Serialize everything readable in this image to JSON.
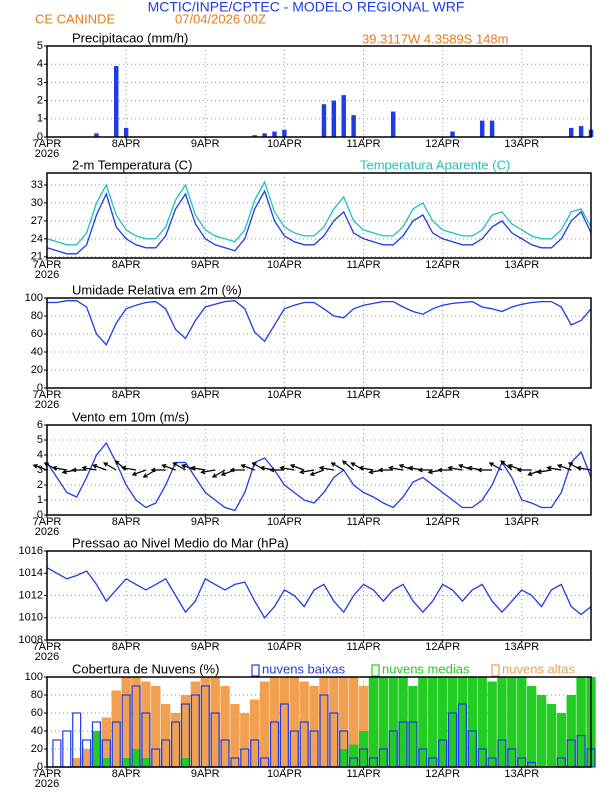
{
  "header": {
    "title": "MCTIC/INPE/CPTEC - MODELO REGIONAL WRF",
    "station": "CE CANINDE",
    "run": "07/04/2026 00Z",
    "location": "39.3117W 4.3589S 148m"
  },
  "chart_data": [
    {
      "type": "bar",
      "title": "Precipitacao (mm/h)",
      "color": "#1e3ce6",
      "grid": true,
      "x_year": "2026",
      "xlim": [
        0,
        165
      ],
      "xticks": [
        {
          "value": 0,
          "label": "7APR"
        },
        {
          "value": 24,
          "label": "8APR"
        },
        {
          "value": 48,
          "label": "9APR"
        },
        {
          "value": 72,
          "label": "10APR"
        },
        {
          "value": 96,
          "label": "11APR"
        },
        {
          "value": 120,
          "label": "12APR"
        },
        {
          "value": 144,
          "label": "13APR"
        }
      ],
      "ylim": [
        0,
        5
      ],
      "yticks": [
        0,
        1,
        2,
        3,
        4,
        5
      ],
      "series": [
        {
          "name": null,
          "color": "#1e3ce6",
          "style": "fill",
          "values": [
            0,
            0,
            0,
            0,
            0,
            0.2,
            0,
            3.9,
            0.5,
            0,
            0,
            0,
            0,
            0,
            0,
            0,
            0,
            0,
            0,
            0,
            0,
            0.1,
            0.2,
            0.3,
            0.4,
            0,
            0,
            0,
            1.8,
            2.0,
            2.3,
            1.2,
            0,
            0,
            0,
            1.4,
            0,
            0,
            0,
            0,
            0,
            0.3,
            0,
            0,
            0.9,
            0.9,
            0,
            0,
            0,
            0,
            0,
            0,
            0,
            0.5,
            0.6,
            0.4
          ]
        }
      ]
    },
    {
      "type": "line",
      "title": "2-m Temperatura (C)",
      "grid": true,
      "x_year": "2026",
      "xlim": [
        0,
        165
      ],
      "xticks": [
        {
          "value": 0,
          "label": "7APR"
        },
        {
          "value": 24,
          "label": "8APR"
        },
        {
          "value": 48,
          "label": "9APR"
        },
        {
          "value": 72,
          "label": "10APR"
        },
        {
          "value": 96,
          "label": "11APR"
        },
        {
          "value": 120,
          "label": "12APR"
        },
        {
          "value": 144,
          "label": "13APR"
        }
      ],
      "ylim": [
        20.8,
        35
      ],
      "yticks": [
        21,
        24,
        27,
        30,
        33
      ],
      "series": [
        {
          "name": null,
          "color": "#1e3ce6",
          "values": [
            22.5,
            22,
            21.5,
            21.5,
            23,
            28,
            31.5,
            26,
            24,
            23,
            22.5,
            22.5,
            24.5,
            29,
            31.5,
            26.5,
            24,
            23,
            22.5,
            22,
            24,
            29,
            32,
            27,
            24.5,
            23.5,
            23,
            23,
            24.5,
            27,
            28.5,
            25,
            24,
            23.5,
            23,
            23,
            24.5,
            27,
            28,
            25,
            24,
            23.5,
            23,
            23,
            24,
            26,
            27,
            25,
            24,
            23,
            22.5,
            22.5,
            24,
            27,
            28.5,
            25
          ]
        },
        {
          "name": "Temperatura Aparente (C)",
          "color": "#20c0c0",
          "values": [
            24,
            23.5,
            23,
            23,
            25,
            30,
            33,
            28,
            25.5,
            24.5,
            24,
            24,
            26,
            30.5,
            33,
            28,
            25.5,
            24.5,
            24,
            23.5,
            25.5,
            30.5,
            33.5,
            28.5,
            26,
            25,
            24.5,
            24.5,
            26,
            29,
            31,
            27,
            25.5,
            25,
            24.5,
            24.5,
            26,
            29,
            30,
            27,
            25.5,
            25,
            24.5,
            24.5,
            25.5,
            28,
            28.5,
            26.5,
            25.5,
            24.5,
            24,
            24,
            25.5,
            28.5,
            29,
            26
          ]
        }
      ]
    },
    {
      "type": "line",
      "title": "Umidade Relativa em 2m (%)",
      "grid": true,
      "x_year": "2026",
      "xlim": [
        0,
        165
      ],
      "xticks": [
        {
          "value": 0,
          "label": "7APR"
        },
        {
          "value": 24,
          "label": "8APR"
        },
        {
          "value": 48,
          "label": "9APR"
        },
        {
          "value": 72,
          "label": "10APR"
        },
        {
          "value": 96,
          "label": "11APR"
        },
        {
          "value": 120,
          "label": "12APR"
        },
        {
          "value": 144,
          "label": "13APR"
        }
      ],
      "ylim": [
        0,
        100
      ],
      "yticks": [
        0,
        20,
        40,
        60,
        80,
        100
      ],
      "series": [
        {
          "name": null,
          "color": "#1e3ce6",
          "values": [
            95,
            95,
            97,
            97,
            90,
            60,
            48,
            72,
            88,
            92,
            95,
            96,
            88,
            65,
            55,
            75,
            90,
            93,
            96,
            97,
            88,
            62,
            52,
            70,
            88,
            92,
            95,
            95,
            88,
            80,
            78,
            88,
            92,
            94,
            96,
            96,
            90,
            85,
            82,
            88,
            92,
            94,
            95,
            96,
            90,
            88,
            85,
            90,
            93,
            95,
            96,
            96,
            90,
            70,
            75,
            88
          ]
        }
      ]
    },
    {
      "type": "line",
      "title": "Vento em 10m (m/s)",
      "grid": true,
      "x_year": "2026",
      "xlim": [
        0,
        165
      ],
      "xticks": [
        {
          "value": 0,
          "label": "7APR"
        },
        {
          "value": 24,
          "label": "8APR"
        },
        {
          "value": 48,
          "label": "9APR"
        },
        {
          "value": 72,
          "label": "10APR"
        },
        {
          "value": 96,
          "label": "11APR"
        },
        {
          "value": 120,
          "label": "12APR"
        },
        {
          "value": 144,
          "label": "13APR"
        }
      ],
      "ylim": [
        0,
        6
      ],
      "yticks": [
        0,
        1,
        2,
        3,
        4,
        5,
        6
      ],
      "series": [
        {
          "name": null,
          "color": "#1e3ce6",
          "values": [
            3.5,
            2.5,
            1.5,
            1.2,
            2.5,
            4,
            4.8,
            3.5,
            2,
            1,
            0.5,
            0.8,
            2,
            3.5,
            3.5,
            2.5,
            1.5,
            1,
            0.5,
            0.3,
            1.5,
            3.5,
            3.8,
            3,
            2,
            1.5,
            1,
            0.8,
            1.5,
            2.5,
            3,
            2,
            1.5,
            1.2,
            0.8,
            0.5,
            1.2,
            2.2,
            2.5,
            2,
            1.5,
            1,
            0.5,
            0.5,
            1,
            2,
            3.5,
            2.5,
            1,
            0.8,
            0.5,
            0.5,
            1.5,
            3.5,
            4.2,
            2.5
          ]
        }
      ],
      "direction": [
        110,
        120,
        100,
        80,
        90,
        100,
        110,
        120,
        130,
        100,
        70,
        60,
        90,
        110,
        120,
        110,
        100,
        80,
        60,
        70,
        90,
        110,
        120,
        100,
        90,
        100,
        110,
        80,
        70,
        100,
        120,
        130,
        120,
        100,
        80,
        90,
        100,
        110,
        100,
        90,
        80,
        90,
        100,
        110,
        100,
        90,
        120,
        130,
        110,
        90,
        70,
        80,
        100,
        110,
        120,
        100
      ]
    },
    {
      "type": "line",
      "title": "Pressao ao Nivel Medio do Mar (hPa)",
      "grid": true,
      "x_year": "2026",
      "xlim": [
        0,
        165
      ],
      "xticks": [
        {
          "value": 0,
          "label": "7APR"
        },
        {
          "value": 24,
          "label": "8APR"
        },
        {
          "value": 48,
          "label": "9APR"
        },
        {
          "value": 72,
          "label": "10APR"
        },
        {
          "value": 96,
          "label": "11APR"
        },
        {
          "value": 120,
          "label": "12APR"
        },
        {
          "value": 144,
          "label": "13APR"
        }
      ],
      "ylim": [
        1008,
        1016
      ],
      "yticks": [
        1008,
        1010,
        1012,
        1014,
        1016
      ],
      "series": [
        {
          "name": null,
          "color": "#1e3ce6",
          "values": [
            1014.5,
            1014,
            1013.5,
            1013.8,
            1014.2,
            1013,
            1011.5,
            1012.5,
            1013.5,
            1013,
            1012.5,
            1013,
            1013.5,
            1012,
            1010.5,
            1011.5,
            1013.5,
            1013,
            1012.5,
            1013,
            1013.2,
            1011.5,
            1010,
            1011,
            1012.5,
            1012,
            1011,
            1012.5,
            1013,
            1011.5,
            1010.5,
            1012,
            1013,
            1012.5,
            1011.5,
            1012.5,
            1013,
            1011.5,
            1010.5,
            1011.5,
            1013,
            1012.5,
            1011.5,
            1012.5,
            1013,
            1011.5,
            1010.5,
            1011.5,
            1012.5,
            1012,
            1011,
            1012.5,
            1013,
            1011,
            1010.3,
            1011
          ]
        }
      ]
    },
    {
      "type": "bar",
      "title": "Cobertura de Nuvens (%)",
      "grid": true,
      "x_year": "2026",
      "xlim": [
        0,
        165
      ],
      "xticks": [
        {
          "value": 0,
          "label": "7APR"
        },
        {
          "value": 24,
          "label": "8APR"
        },
        {
          "value": 48,
          "label": "9APR"
        },
        {
          "value": 72,
          "label": "10APR"
        },
        {
          "value": 96,
          "label": "11APR"
        },
        {
          "value": 120,
          "label": "12APR"
        },
        {
          "value": 144,
          "label": "13APR"
        }
      ],
      "ylim": [
        0,
        100
      ],
      "yticks": [
        0,
        20,
        40,
        60,
        80,
        100
      ],
      "series": [
        {
          "name": "nuvens altas",
          "color": "#f0a050",
          "style": "fill",
          "values": [
            0,
            0,
            0,
            10,
            20,
            30,
            55,
            85,
            100,
            100,
            95,
            90,
            70,
            60,
            80,
            95,
            100,
            100,
            90,
            70,
            60,
            75,
            95,
            100,
            100,
            100,
            95,
            90,
            100,
            100,
            100,
            100,
            90,
            40,
            0,
            0,
            0,
            0,
            0,
            0,
            0,
            0,
            0,
            0,
            0,
            0,
            0,
            0,
            0,
            0,
            0,
            0,
            0,
            0,
            0,
            0
          ]
        },
        {
          "name": "nuvens medias",
          "color": "#22cc22",
          "style": "fill",
          "values": [
            0,
            0,
            0,
            0,
            0,
            40,
            10,
            0,
            10,
            20,
            10,
            0,
            0,
            0,
            10,
            0,
            0,
            0,
            0,
            0,
            0,
            0,
            0,
            0,
            0,
            0,
            0,
            0,
            0,
            0,
            20,
            25,
            40,
            100,
            100,
            100,
            100,
            90,
            100,
            100,
            100,
            100,
            100,
            100,
            100,
            95,
            100,
            100,
            100,
            90,
            80,
            70,
            60,
            80,
            100,
            100
          ]
        },
        {
          "name": "nuvens baixas",
          "color": "#1e3ce6",
          "style": "outline",
          "values": [
            0,
            30,
            40,
            60,
            30,
            50,
            30,
            50,
            80,
            90,
            60,
            20,
            30,
            50,
            70,
            80,
            90,
            60,
            30,
            10,
            20,
            30,
            10,
            50,
            70,
            40,
            50,
            40,
            80,
            60,
            40,
            10,
            20,
            10,
            20,
            40,
            50,
            50,
            20,
            10,
            30,
            60,
            70,
            40,
            20,
            10,
            30,
            20,
            10,
            5,
            0,
            0,
            10,
            30,
            35,
            20
          ]
        }
      ]
    }
  ]
}
